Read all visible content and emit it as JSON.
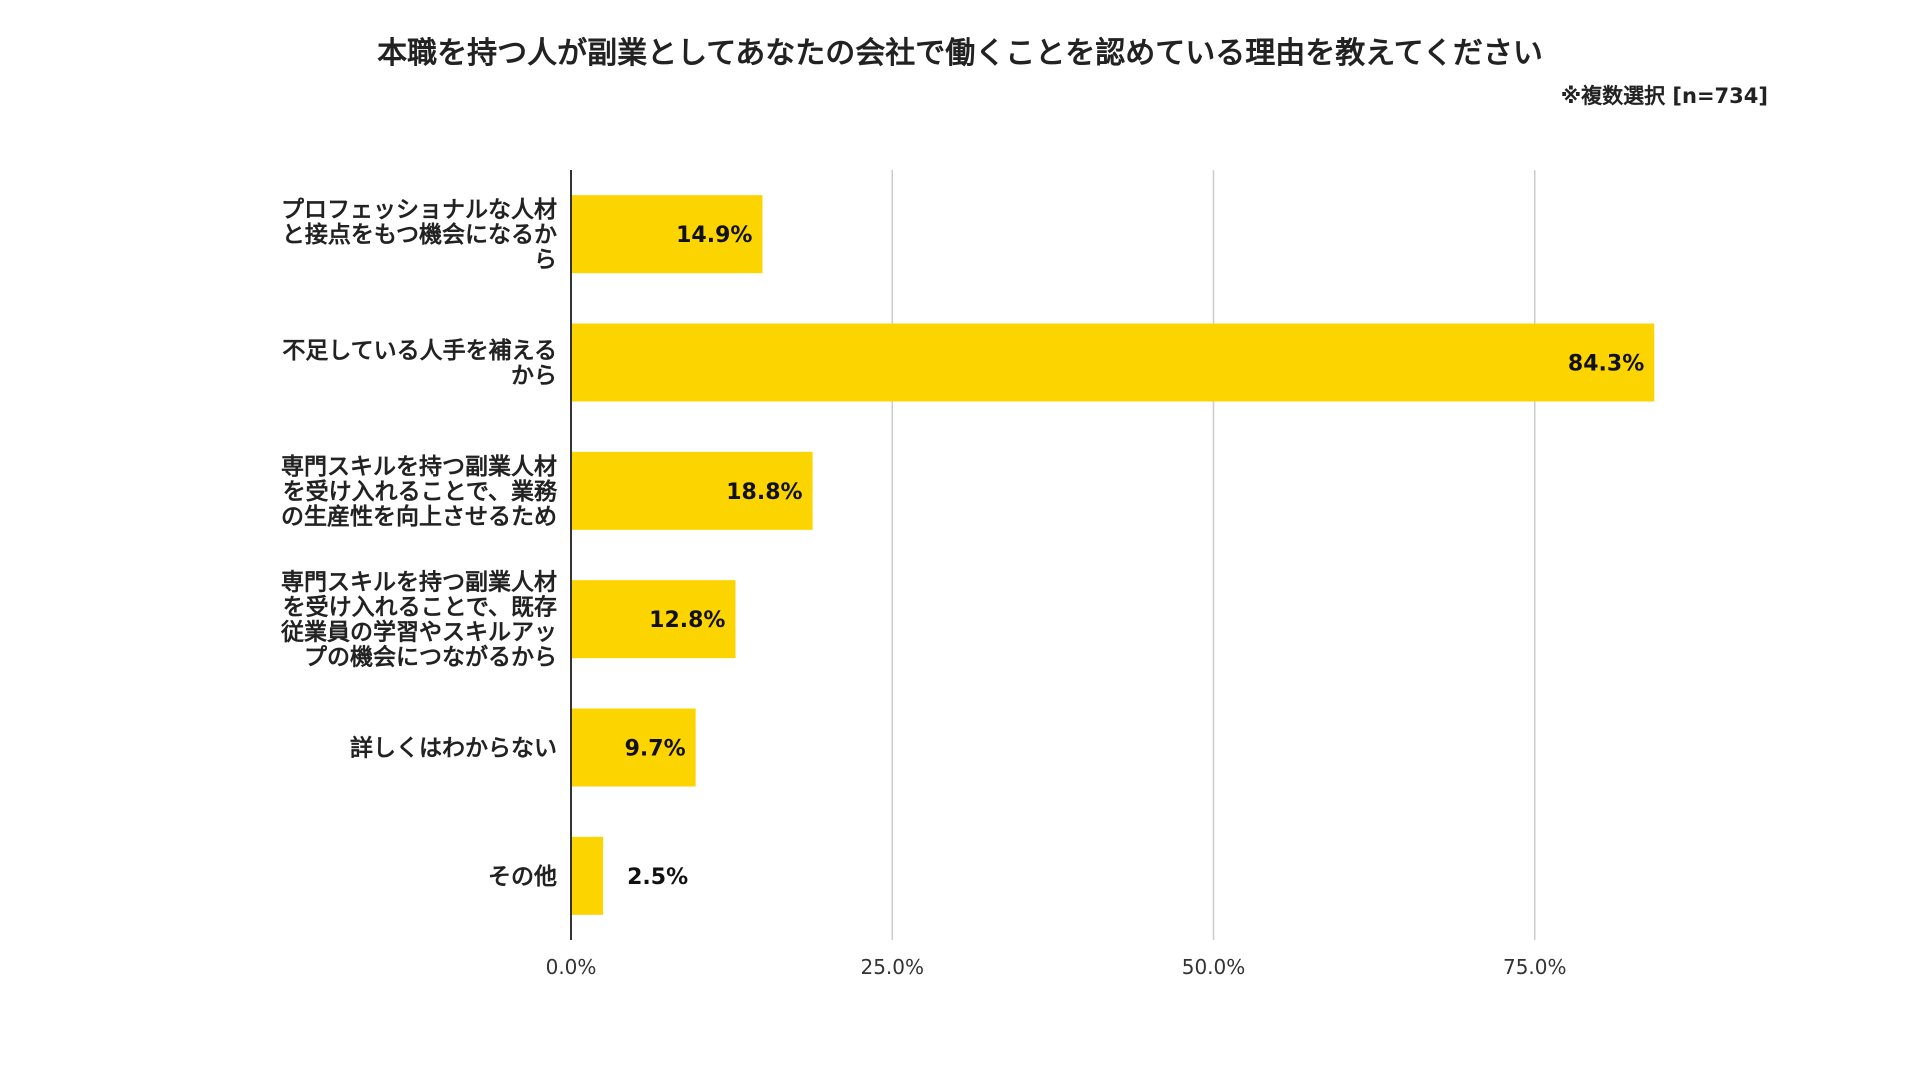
{
  "chart_data": {
    "type": "bar",
    "orientation": "horizontal",
    "title": "本職を持つ人が副業としてあなたの会社で働くことを認めている理由を教えてください",
    "subtitle": "※複数選択 [n=734]",
    "categories": [
      [
        "プロフェッショナルな人材",
        "と接点をもつ機会になるか",
        "ら"
      ],
      [
        "不足している人手を補える",
        "から"
      ],
      [
        "専門スキルを持つ副業人材",
        "を受け入れることで、業務",
        "の生産性を向上させるため"
      ],
      [
        "専門スキルを持つ副業人材",
        "を受け入れることで、既存",
        "従業員の学習やスキルアッ",
        "プの機会につながるから"
      ],
      [
        "詳しくはわからない"
      ],
      [
        "その他"
      ]
    ],
    "values": [
      14.9,
      84.3,
      18.8,
      12.8,
      9.7,
      2.5
    ],
    "value_labels": [
      "14.9%",
      "84.3%",
      "18.8%",
      "12.8%",
      "9.7%",
      "2.5%"
    ],
    "xlim": [
      0,
      100
    ],
    "xticks": [
      0,
      25,
      50,
      75
    ],
    "xtick_labels": [
      "0.0%",
      "25.0%",
      "50.0%",
      "75.0%"
    ],
    "grid": true,
    "legend": "none",
    "colors": {
      "bar": "#FCD400",
      "grid": "#cccccc",
      "axis": "#333333"
    }
  }
}
